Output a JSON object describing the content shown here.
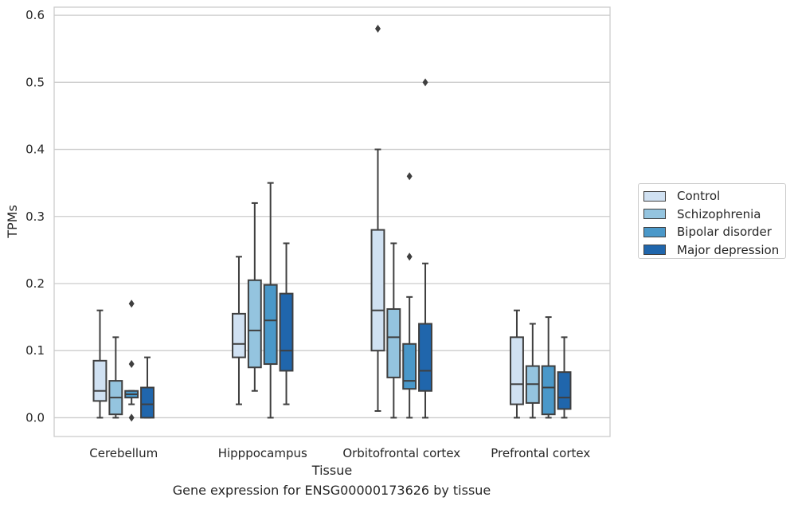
{
  "caption": "Gene expression for ENSG00000173626 by tissue",
  "chart_data": {
    "type": "box",
    "xlabel": "Tissue",
    "ylabel": "TPMs",
    "ylim": [
      -0.028,
      0.612
    ],
    "yticks": [
      0.0,
      0.1,
      0.2,
      0.3,
      0.4,
      0.5,
      0.6
    ],
    "ytick_labels": [
      "0.0",
      "0.1",
      "0.2",
      "0.3",
      "0.4",
      "0.5",
      "0.6"
    ],
    "grid": "horizontal",
    "legend_position": "right",
    "categories": [
      "Cerebellum",
      "Hipppocampus",
      "Orbitofrontal cortex",
      "Prefrontal cortex"
    ],
    "series": [
      {
        "name": "Control",
        "color": "#d0e1f2",
        "boxes": [
          {
            "whisker_low": 0.0,
            "q1": 0.025,
            "median": 0.04,
            "q3": 0.085,
            "whisker_high": 0.16,
            "outliers": []
          },
          {
            "whisker_low": 0.02,
            "q1": 0.09,
            "median": 0.11,
            "q3": 0.155,
            "whisker_high": 0.24,
            "outliers": []
          },
          {
            "whisker_low": 0.01,
            "q1": 0.1,
            "median": 0.16,
            "q3": 0.28,
            "whisker_high": 0.4,
            "outliers": [
              0.58
            ]
          },
          {
            "whisker_low": 0.0,
            "q1": 0.02,
            "median": 0.05,
            "q3": 0.12,
            "whisker_high": 0.16,
            "outliers": []
          }
        ]
      },
      {
        "name": "Schizophrenia",
        "color": "#94c4df",
        "boxes": [
          {
            "whisker_low": 0.0,
            "q1": 0.005,
            "median": 0.03,
            "q3": 0.055,
            "whisker_high": 0.12,
            "outliers": []
          },
          {
            "whisker_low": 0.04,
            "q1": 0.075,
            "median": 0.13,
            "q3": 0.205,
            "whisker_high": 0.32,
            "outliers": []
          },
          {
            "whisker_low": 0.0,
            "q1": 0.06,
            "median": 0.12,
            "q3": 0.162,
            "whisker_high": 0.26,
            "outliers": []
          },
          {
            "whisker_low": 0.0,
            "q1": 0.022,
            "median": 0.05,
            "q3": 0.077,
            "whisker_high": 0.14,
            "outliers": []
          }
        ]
      },
      {
        "name": "Bipolar disorder",
        "color": "#4a98c9",
        "boxes": [
          {
            "whisker_low": 0.02,
            "q1": 0.03,
            "median": 0.035,
            "q3": 0.04,
            "whisker_high": 0.04,
            "outliers": [
              0.17,
              0.08,
              0.0
            ]
          },
          {
            "whisker_low": 0.0,
            "q1": 0.08,
            "median": 0.145,
            "q3": 0.198,
            "whisker_high": 0.35,
            "outliers": []
          },
          {
            "whisker_low": 0.0,
            "q1": 0.043,
            "median": 0.055,
            "q3": 0.11,
            "whisker_high": 0.18,
            "outliers": [
              0.36,
              0.24
            ]
          },
          {
            "whisker_low": 0.0,
            "q1": 0.005,
            "median": 0.045,
            "q3": 0.077,
            "whisker_high": 0.15,
            "outliers": []
          }
        ]
      },
      {
        "name": "Major depression",
        "color": "#2066ac",
        "boxes": [
          {
            "whisker_low": 0.0,
            "q1": 0.0,
            "median": 0.02,
            "q3": 0.045,
            "whisker_high": 0.09,
            "outliers": []
          },
          {
            "whisker_low": 0.02,
            "q1": 0.07,
            "median": 0.1,
            "q3": 0.185,
            "whisker_high": 0.26,
            "outliers": []
          },
          {
            "whisker_low": 0.0,
            "q1": 0.04,
            "median": 0.07,
            "q3": 0.14,
            "whisker_high": 0.23,
            "outliers": [
              0.5
            ]
          },
          {
            "whisker_low": 0.0,
            "q1": 0.013,
            "median": 0.03,
            "q3": 0.068,
            "whisker_high": 0.12,
            "outliers": []
          }
        ]
      }
    ]
  }
}
